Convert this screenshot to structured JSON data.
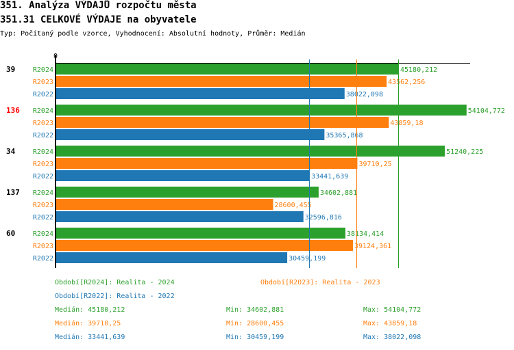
{
  "header": {
    "title": "351. Analýza VÝDAJŮ rozpočtu města",
    "subtitle": "351.31 CELKOVÉ VÝDAJE na obyvatele",
    "info": "Typ: Počítaný podle vzorce, Vyhodnocení: Absolutní hodnoty, Průměr: Medián"
  },
  "colors": {
    "R2024": "#2ca02c",
    "R2023": "#ff7f0e",
    "R2022": "#1f77b4",
    "highlight": "#ff0000",
    "axis": "#000000"
  },
  "chart_data": {
    "type": "bar",
    "orientation": "horizontal",
    "x_axis_zero_label": "0",
    "xlim": [
      0,
      60000
    ],
    "categories": [
      "39",
      "136",
      "34",
      "137",
      "60"
    ],
    "highlighted_category": "136",
    "series": [
      {
        "name": "R2024",
        "values": [
          45180.212,
          54104.772,
          51240.225,
          34602.881,
          38134.414
        ],
        "labels": [
          "45180,212",
          "54104,772",
          "51240,225",
          "34602,881",
          "38134,414"
        ]
      },
      {
        "name": "R2023",
        "values": [
          43562.256,
          43859.18,
          39710.25,
          28600.455,
          39124.361
        ],
        "labels": [
          "43562,256",
          "43859,18",
          "39710,25",
          "28600,455",
          "39124,361"
        ]
      },
      {
        "name": "R2022",
        "values": [
          38022.098,
          35365.868,
          33441.639,
          32596.816,
          30459.199
        ],
        "labels": [
          "38022,098",
          "35365,868",
          "33441,639",
          "32596,816",
          "30459,199"
        ]
      }
    ],
    "median_lines": [
      {
        "series": "R2024",
        "value": 45180.212
      },
      {
        "series": "R2023",
        "value": 39710.25
      },
      {
        "series": "R2022",
        "value": 33441.639
      }
    ]
  },
  "legend": {
    "periods": [
      {
        "series": "R2024",
        "text": "Období[R2024]: Realita - 2024"
      },
      {
        "series": "R2023",
        "text": "Období[R2023]: Realita - 2023"
      },
      {
        "series": "R2022",
        "text": "Období[R2022]: Realita - 2022"
      }
    ],
    "stats": [
      {
        "series": "R2024",
        "median": "Medián: 45180,212",
        "min": "Min: 34602,881",
        "max": "Max: 54104,772"
      },
      {
        "series": "R2023",
        "median": "Medián: 39710,25",
        "min": "Min: 28600,455",
        "max": "Max: 43859,18"
      },
      {
        "series": "R2022",
        "median": "Medián: 33441,639",
        "min": "Min: 30459,199",
        "max": "Max: 38022,098"
      }
    ]
  }
}
